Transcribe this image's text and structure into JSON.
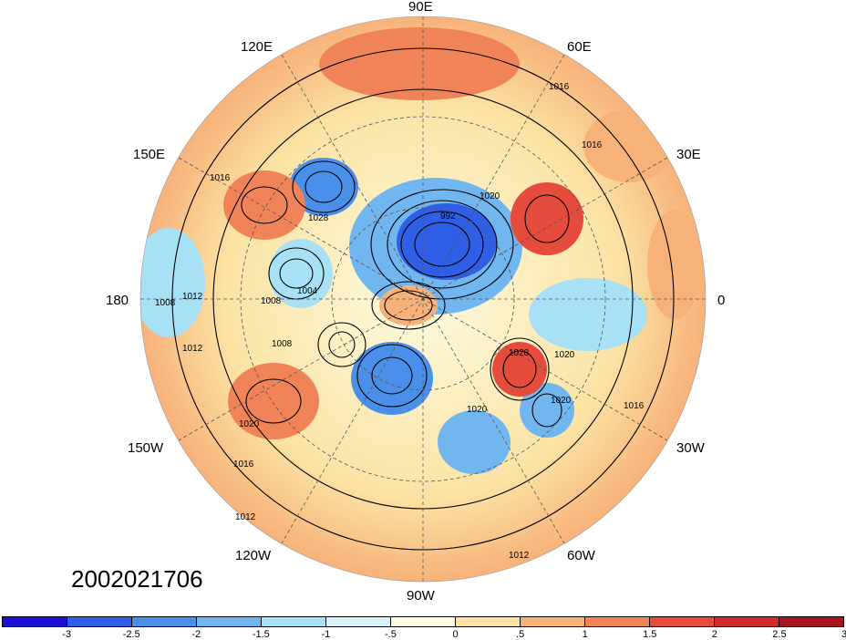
{
  "map": {
    "longitude_labels": [
      "90E",
      "60E",
      "30E",
      "0",
      "30W",
      "60W",
      "90W",
      "120W",
      "150W",
      "180",
      "150E",
      "120E"
    ],
    "contour_labels": [
      "1016",
      "1016",
      "1016",
      "1020",
      "992",
      "1008",
      "1012",
      "1008",
      "1004",
      "1008",
      "1012",
      "1028",
      "1020",
      "1020",
      "1016",
      "1016",
      "1012",
      "1012",
      "1028",
      "1020",
      "1020"
    ],
    "timestamp": "2002021706",
    "anomaly_regions": [
      {
        "name": "arctic-low",
        "sign": "negative",
        "strength": 3
      },
      {
        "name": "greenland-low",
        "sign": "negative",
        "strength": 2
      },
      {
        "name": "siberia-high",
        "sign": "positive",
        "strength": 2
      },
      {
        "name": "europe-high",
        "sign": "positive",
        "strength": 3
      },
      {
        "name": "pacific-high",
        "sign": "positive",
        "strength": 2
      },
      {
        "name": "atlantic-high",
        "sign": "positive",
        "strength": 3
      }
    ]
  },
  "colorbar": {
    "colors": [
      "#1d10d6",
      "#2f5fe6",
      "#4a90ea",
      "#72b6f0",
      "#a8e0f6",
      "#d7f2fa",
      "#fdfbe0",
      "#fbe3a4",
      "#f7b27a",
      "#f08458",
      "#e64c3c",
      "#d52a2d",
      "#a8151e"
    ],
    "tick_labels": [
      "-3",
      "-2.5",
      "-2",
      "-1.5",
      "-1",
      "-.5",
      "0",
      ".5",
      "1",
      "1.5",
      "2",
      "2.5",
      "3"
    ]
  }
}
